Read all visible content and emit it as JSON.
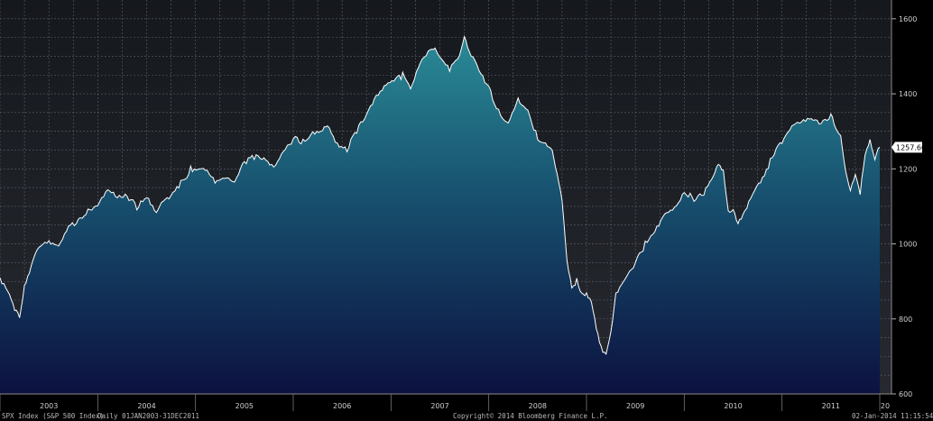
{
  "footer": {
    "series_name": "SPX Index (S&P 500 Index)",
    "range_text": "Daily 01JAN2003-31DEC2011",
    "copyright": "Copyright© 2014 Bloomberg Finance L.P.",
    "timestamp": "02-Jan-2014 11:15:54"
  },
  "chart_data": {
    "type": "area",
    "title": "",
    "xlabel": "",
    "ylabel": "",
    "ylim": [
      600,
      1650
    ],
    "yticks": [
      600,
      800,
      1000,
      1200,
      1400,
      1600
    ],
    "x_tick_labels": [
      "2003",
      "2004",
      "2005",
      "2006",
      "2007",
      "2008",
      "2009",
      "2010",
      "2011",
      "20"
    ],
    "last_value_label": "1257.60",
    "grid": true,
    "colors": {
      "background": "#1c1f25",
      "fill_top": "#2a8a96",
      "fill_bottom": "#0c1140",
      "line": "#ffffff",
      "grid": "#6a6f78"
    },
    "series": [
      {
        "x": [
          2003.0,
          2003.08,
          2003.15,
          2003.2,
          2003.25,
          2003.3,
          2003.4,
          2003.5,
          2003.6,
          2003.7,
          2003.8,
          2003.9,
          2004.0,
          2004.1,
          2004.2,
          2004.3,
          2004.4,
          2004.5,
          2004.6,
          2004.65,
          2004.75,
          2004.85,
          2004.95,
          2005.1,
          2005.2,
          2005.3,
          2005.4,
          2005.5,
          2005.6,
          2005.7,
          2005.8,
          2005.9,
          2006.0,
          2006.1,
          2006.2,
          2006.3,
          2006.35,
          2006.45,
          2006.55,
          2006.65,
          2006.75,
          2006.85,
          2006.95,
          2007.05,
          2007.12,
          2007.2,
          2007.3,
          2007.4,
          2007.45,
          2007.5,
          2007.6,
          2007.7,
          2007.75,
          2007.8,
          2007.9,
          2008.0,
          2008.1,
          2008.2,
          2008.3,
          2008.4,
          2008.5,
          2008.6,
          2008.65,
          2008.7,
          2008.75,
          2008.8,
          2008.85,
          2008.9,
          2008.95,
          2009.0,
          2009.05,
          2009.1,
          2009.15,
          2009.2,
          2009.25,
          2009.3,
          2009.4,
          2009.5,
          2009.6,
          2009.7,
          2009.8,
          2009.9,
          2010.0,
          2010.1,
          2010.2,
          2010.3,
          2010.35,
          2010.4,
          2010.45,
          2010.5,
          2010.55,
          2010.6,
          2010.7,
          2010.8,
          2010.9,
          2011.0,
          2011.1,
          2011.2,
          2011.3,
          2011.4,
          2011.5,
          2011.55,
          2011.6,
          2011.65,
          2011.7,
          2011.75,
          2011.8,
          2011.85,
          2011.9,
          2011.95,
          2012.0
        ],
        "y": [
          910,
          880,
          830,
          810,
          890,
          930,
          990,
          1000,
          990,
          1040,
          1060,
          1090,
          1110,
          1150,
          1130,
          1130,
          1100,
          1120,
          1080,
          1110,
          1120,
          1160,
          1200,
          1205,
          1170,
          1180,
          1170,
          1220,
          1230,
          1220,
          1200,
          1240,
          1280,
          1270,
          1300,
          1310,
          1320,
          1270,
          1250,
          1300,
          1340,
          1390,
          1420,
          1440,
          1450,
          1420,
          1490,
          1520,
          1530,
          1500,
          1460,
          1500,
          1550,
          1510,
          1460,
          1420,
          1350,
          1330,
          1390,
          1360,
          1280,
          1260,
          1240,
          1180,
          1110,
          950,
          880,
          900,
          870,
          870,
          850,
          780,
          730,
          700,
          760,
          860,
          900,
          950,
          1000,
          1040,
          1080,
          1100,
          1140,
          1120,
          1130,
          1180,
          1210,
          1190,
          1080,
          1090,
          1060,
          1080,
          1140,
          1180,
          1230,
          1270,
          1310,
          1320,
          1330,
          1320,
          1340,
          1310,
          1290,
          1200,
          1150,
          1190,
          1140,
          1230,
          1270,
          1220,
          1257.6
        ]
      }
    ]
  }
}
